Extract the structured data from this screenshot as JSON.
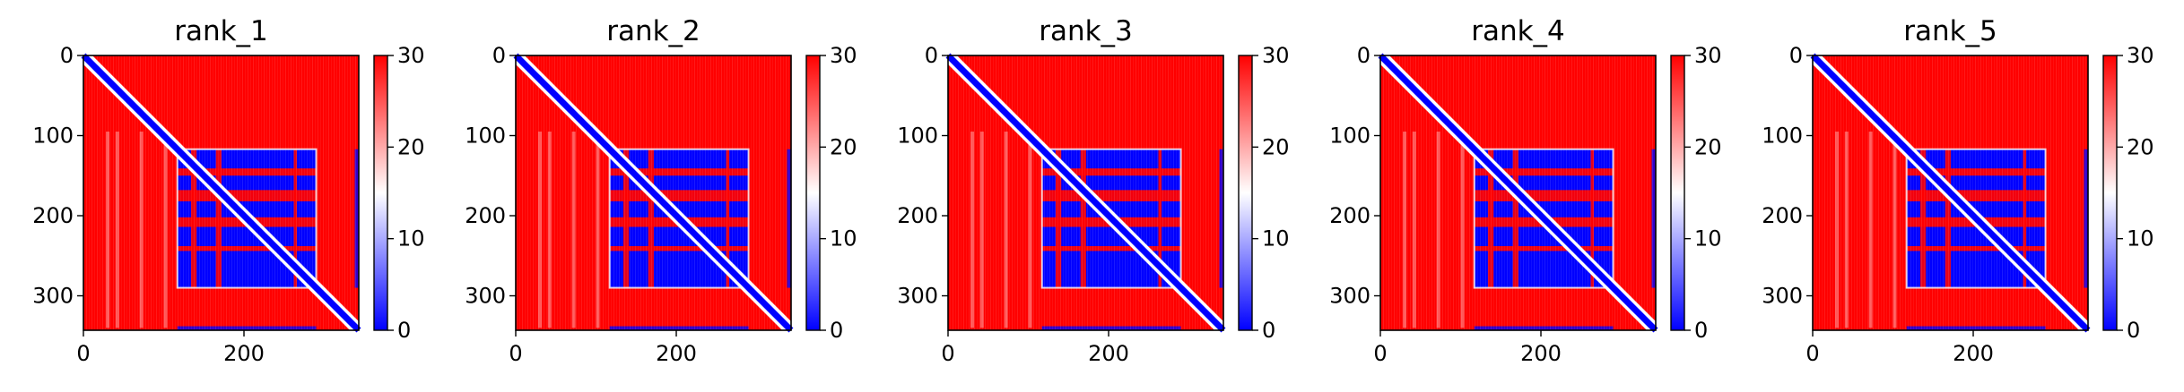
{
  "chart_data": [
    {
      "type": "heatmap",
      "title": "rank_1",
      "x_ticks": [
        0,
        200
      ],
      "y_ticks": [
        0,
        100,
        200,
        300
      ],
      "xlim": [
        0,
        343
      ],
      "ylim": [
        343,
        0
      ],
      "colorbar": {
        "ticks": [
          0,
          10,
          20,
          30
        ],
        "range": [
          0,
          30
        ],
        "colormap": "bwr"
      },
      "structure": {
        "diagonal_low": true,
        "domain_start": 117,
        "domain_end": 290,
        "stripe_start": 338
      }
    },
    {
      "type": "heatmap",
      "title": "rank_2",
      "x_ticks": [
        0,
        200
      ],
      "y_ticks": [
        0,
        100,
        200,
        300
      ],
      "xlim": [
        0,
        343
      ],
      "ylim": [
        343,
        0
      ],
      "colorbar": {
        "ticks": [
          0,
          10,
          20,
          30
        ],
        "range": [
          0,
          30
        ],
        "colormap": "bwr"
      },
      "structure": {
        "diagonal_low": true,
        "domain_start": 117,
        "domain_end": 290,
        "stripe_start": 338
      }
    },
    {
      "type": "heatmap",
      "title": "rank_3",
      "x_ticks": [
        0,
        200
      ],
      "y_ticks": [
        0,
        100,
        200,
        300
      ],
      "xlim": [
        0,
        343
      ],
      "ylim": [
        343,
        0
      ],
      "colorbar": {
        "ticks": [
          0,
          10,
          20,
          30
        ],
        "range": [
          0,
          30
        ],
        "colormap": "bwr"
      },
      "structure": {
        "diagonal_low": true,
        "domain_start": 117,
        "domain_end": 290,
        "stripe_start": 338
      }
    },
    {
      "type": "heatmap",
      "title": "rank_4",
      "x_ticks": [
        0,
        200
      ],
      "y_ticks": [
        0,
        100,
        200,
        300
      ],
      "xlim": [
        0,
        343
      ],
      "ylim": [
        343,
        0
      ],
      "colorbar": {
        "ticks": [
          0,
          10,
          20,
          30
        ],
        "range": [
          0,
          30
        ],
        "colormap": "bwr"
      },
      "structure": {
        "diagonal_low": true,
        "domain_start": 117,
        "domain_end": 290,
        "stripe_start": 338
      }
    },
    {
      "type": "heatmap",
      "title": "rank_5",
      "x_ticks": [
        0,
        200
      ],
      "y_ticks": [
        0,
        100,
        200,
        300
      ],
      "xlim": [
        0,
        343
      ],
      "ylim": [
        343,
        0
      ],
      "colorbar": {
        "ticks": [
          0,
          10,
          20,
          30
        ],
        "range": [
          0,
          30
        ],
        "colormap": "bwr"
      },
      "structure": {
        "diagonal_low": true,
        "domain_start": 117,
        "domain_end": 290,
        "stripe_start": 338
      }
    }
  ],
  "colors": {
    "high": "#ff0000",
    "mid": "#ffffff",
    "low": "#0000ff",
    "axis": "#000000"
  }
}
